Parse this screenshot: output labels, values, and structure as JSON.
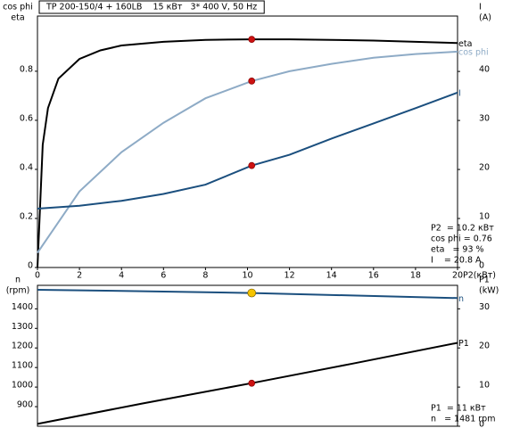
{
  "chart_data": [
    {
      "type": "line",
      "title": "TP 200-150/4 + 160LB    15 кВт   3* 400 V, 50 Hz",
      "y_label": [
        "cos phi",
        "eta"
      ],
      "y2_label": [
        "I",
        "(A)"
      ],
      "x_label": "P2(кВт)",
      "xlim": [
        0,
        20
      ],
      "xticks": [
        0,
        2,
        4,
        6,
        8,
        10,
        12,
        14,
        16,
        18,
        20
      ],
      "ylim": [
        0,
        1.025
      ],
      "yticks": [
        0,
        0.2,
        0.4,
        0.6,
        0.8
      ],
      "y2lim": [
        0,
        51.3
      ],
      "y2ticks": [
        0,
        10,
        20,
        30,
        40
      ],
      "series": [
        {
          "name": "eta",
          "color": "#000000",
          "x": [
            0,
            0.25,
            0.5,
            1,
            2,
            3,
            4,
            6,
            8,
            10.2,
            12,
            14,
            16,
            18,
            20
          ],
          "values": [
            0.0,
            0.5,
            0.65,
            0.77,
            0.85,
            0.885,
            0.905,
            0.92,
            0.928,
            0.93,
            0.93,
            0.928,
            0.925,
            0.92,
            0.915
          ]
        },
        {
          "name": "cos phi",
          "color": "#8eabc6",
          "x": [
            0,
            2,
            4,
            6,
            8,
            10.2,
            12,
            14,
            16,
            18,
            20
          ],
          "values": [
            0.06,
            0.31,
            0.47,
            0.59,
            0.69,
            0.76,
            0.8,
            0.83,
            0.855,
            0.87,
            0.88
          ]
        },
        {
          "name": "I",
          "color": "#1b4f7e",
          "axis": "y2",
          "x": [
            0,
            2,
            4,
            6,
            8,
            10.2,
            12,
            14,
            16,
            18,
            20
          ],
          "values": [
            12,
            12.6,
            13.6,
            15,
            16.9,
            20.8,
            23,
            26.3,
            29.4,
            32.5,
            35.7
          ]
        }
      ],
      "markers": [
        {
          "x": 10.2,
          "y": 0.93,
          "color": "#cc1111"
        },
        {
          "x": 10.2,
          "y": 0.76,
          "color": "#cc1111"
        },
        {
          "x": 10.2,
          "y": 20.8,
          "color": "#cc1111",
          "axis": "y2"
        }
      ],
      "annotations": [
        "P2  = 10.2 кВт",
        "cos phi = 0.76",
        "eta   = 93 %",
        "I    = 20.8 A"
      ]
    },
    {
      "type": "line",
      "y_label": [
        "n",
        "(rpm)"
      ],
      "y2_label": [
        "P1",
        "(kW)"
      ],
      "xlim": [
        0,
        20
      ],
      "ylim": [
        800,
        1520
      ],
      "yticks": [
        900,
        1000,
        1100,
        1200,
        1300,
        1400
      ],
      "y2lim": [
        0,
        36
      ],
      "y2ticks": [
        0,
        10,
        20,
        30
      ],
      "series": [
        {
          "name": "n",
          "color": "#1b4f7e",
          "x": [
            0,
            5,
            10.2,
            15,
            20
          ],
          "values": [
            1497,
            1490,
            1481,
            1468,
            1455
          ]
        },
        {
          "name": "P1",
          "color": "#000000",
          "axis": "y2",
          "x": [
            0,
            5,
            10.2,
            15,
            20
          ],
          "values": [
            0.6,
            5.8,
            11,
            16,
            21.3
          ]
        }
      ],
      "markers": [
        {
          "x": 10.2,
          "y": 1481,
          "color": "#f5c400"
        },
        {
          "x": 10.2,
          "y": 11,
          "color": "#cc1111",
          "axis": "y2"
        }
      ],
      "annotations": [
        "P1  = 11 кВт",
        "n   = 1481 rpm"
      ]
    }
  ]
}
